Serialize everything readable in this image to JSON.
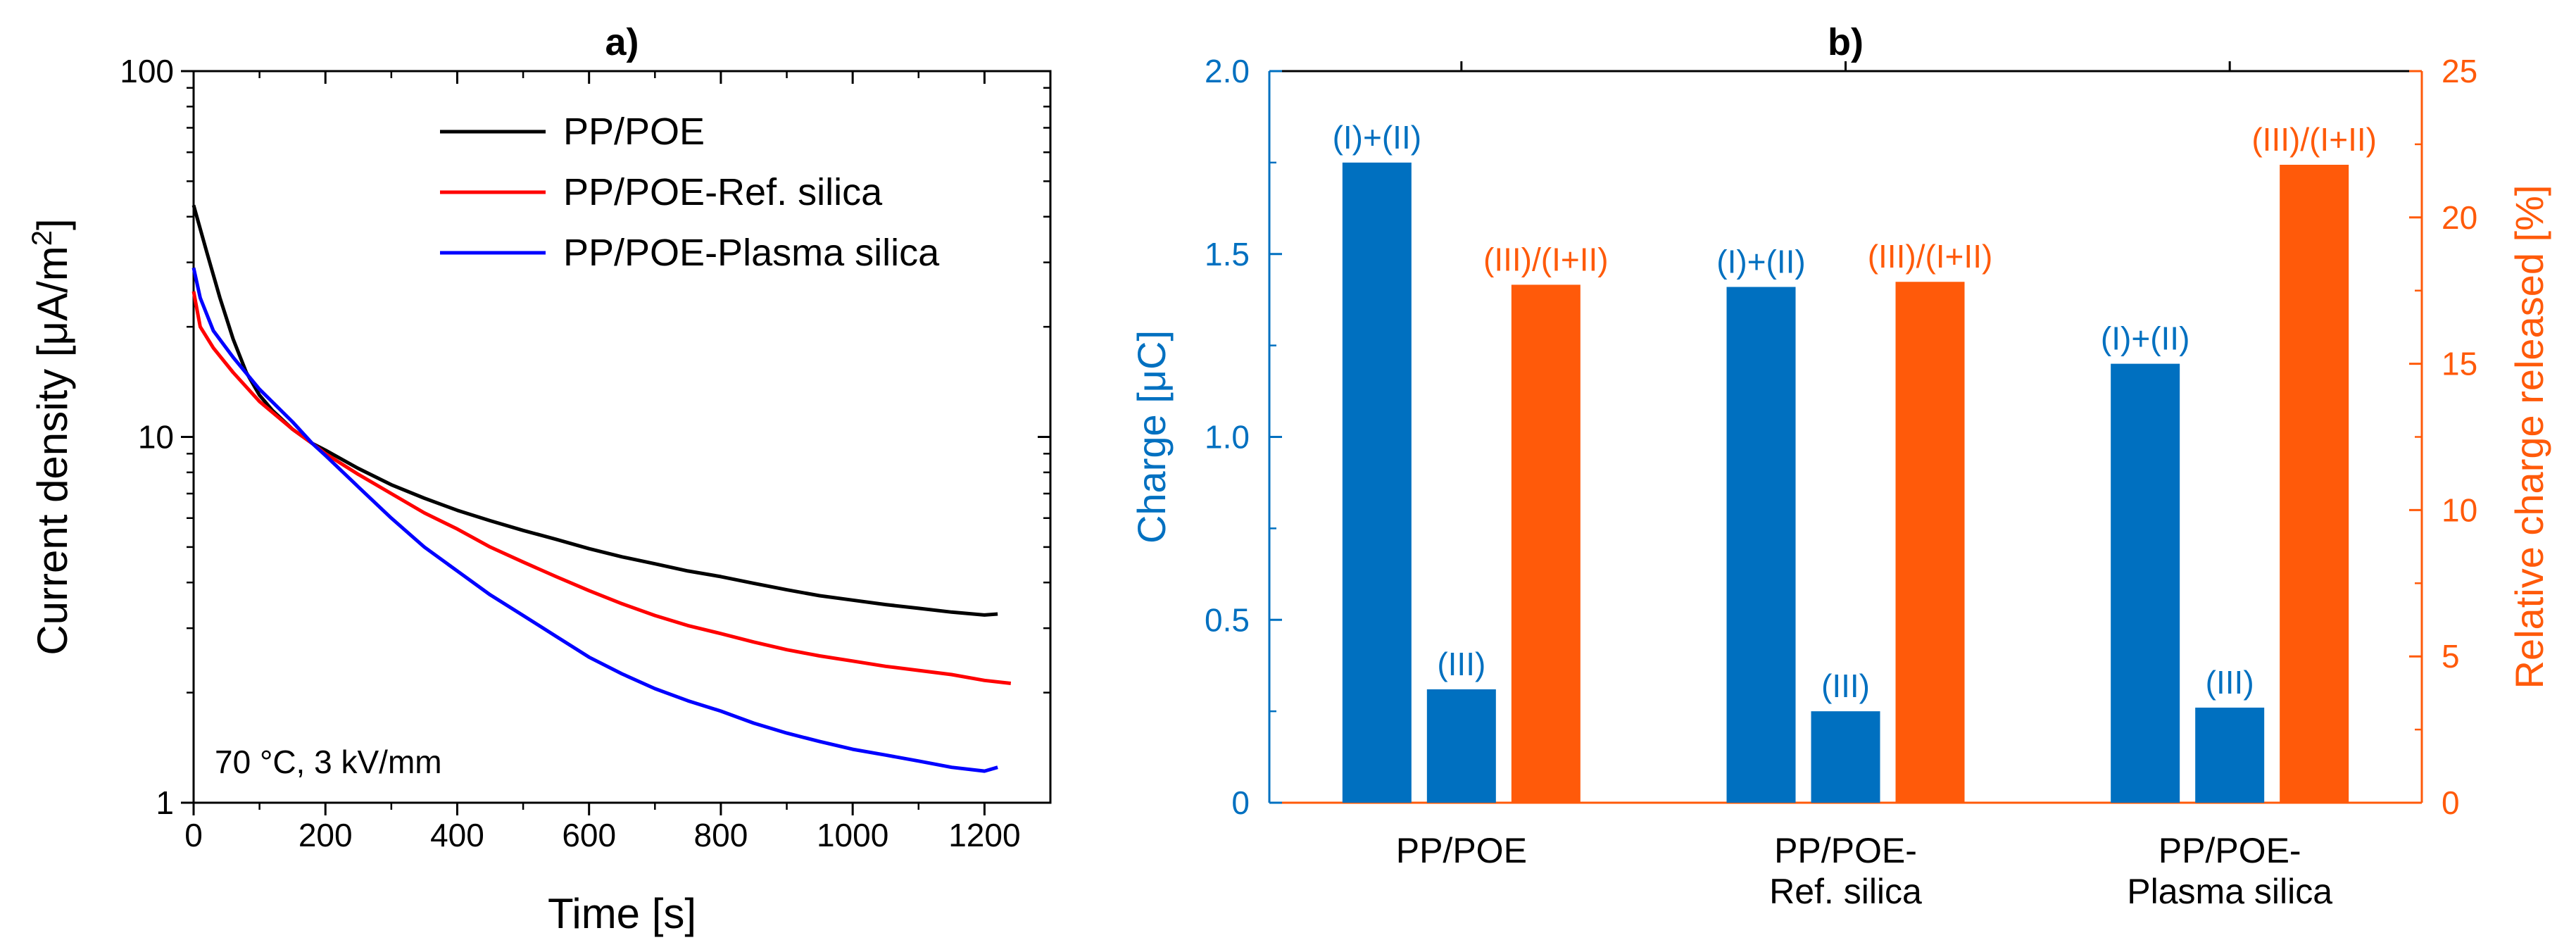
{
  "colors": {
    "black": "#000000",
    "red": "#ff0000",
    "blue": "#0000ff",
    "bar_blue": "#0070c0",
    "bar_orange": "#ff5a0a",
    "axis_blue": "#0070c0",
    "axis_orange": "#ff5a0a"
  },
  "chart_data": [
    {
      "type": "line",
      "title": "a)",
      "xlabel": "Time [s]",
      "ylabel_prefix": "Current density [μA/m",
      "ylabel_sup": "2",
      "ylabel_suffix": "]",
      "xscale": "linear",
      "yscale": "log",
      "xlim": [
        0,
        1300
      ],
      "ylim": [
        1,
        100
      ],
      "xticks": [
        0,
        200,
        400,
        600,
        800,
        1000,
        1200
      ],
      "xtick_labels": [
        "0",
        "200",
        "400",
        "600",
        "800",
        "1000",
        "1200"
      ],
      "yticks": [
        1,
        10,
        100
      ],
      "ytick_labels": [
        "1",
        "10",
        "100"
      ],
      "legend_position": "top-right",
      "annotation": "70 °C, 3 kV/mm",
      "series": [
        {
          "name": "PP/POE",
          "color": "#000000",
          "x": [
            0,
            20,
            40,
            60,
            80,
            100,
            120,
            150,
            180,
            200,
            250,
            300,
            350,
            400,
            450,
            500,
            550,
            600,
            650,
            700,
            750,
            800,
            850,
            900,
            950,
            1000,
            1050,
            1100,
            1150,
            1200,
            1220
          ],
          "y": [
            43,
            32,
            24,
            18.5,
            15,
            13,
            11.8,
            10.5,
            9.6,
            9.2,
            8.2,
            7.4,
            6.8,
            6.3,
            5.9,
            5.55,
            5.25,
            4.95,
            4.7,
            4.5,
            4.3,
            4.15,
            3.98,
            3.82,
            3.68,
            3.58,
            3.48,
            3.4,
            3.32,
            3.26,
            3.28
          ]
        },
        {
          "name": "PP/POE-Ref. silica",
          "color": "#ff0000",
          "x": [
            0,
            10,
            30,
            60,
            100,
            150,
            180,
            200,
            250,
            300,
            350,
            400,
            450,
            500,
            550,
            600,
            650,
            700,
            750,
            800,
            850,
            900,
            950,
            1000,
            1050,
            1100,
            1150,
            1200,
            1240
          ],
          "y": [
            25,
            20,
            17.5,
            15,
            12.5,
            10.5,
            9.6,
            9.0,
            7.9,
            7.0,
            6.2,
            5.6,
            5.0,
            4.55,
            4.15,
            3.8,
            3.5,
            3.25,
            3.05,
            2.9,
            2.75,
            2.62,
            2.52,
            2.44,
            2.36,
            2.3,
            2.24,
            2.16,
            2.12
          ]
        },
        {
          "name": "PP/POE-Plasma silica",
          "color": "#0000ff",
          "x": [
            0,
            10,
            30,
            60,
            100,
            150,
            180,
            200,
            250,
            300,
            350,
            400,
            450,
            500,
            550,
            600,
            650,
            700,
            750,
            800,
            850,
            900,
            950,
            1000,
            1050,
            1100,
            1150,
            1200,
            1220
          ],
          "y": [
            29,
            24,
            19.5,
            16.5,
            13.5,
            11,
            9.6,
            8.9,
            7.3,
            6.0,
            5.0,
            4.3,
            3.7,
            3.25,
            2.85,
            2.5,
            2.25,
            2.05,
            1.9,
            1.78,
            1.65,
            1.55,
            1.47,
            1.4,
            1.35,
            1.3,
            1.25,
            1.22,
            1.25
          ]
        }
      ]
    },
    {
      "type": "bar",
      "title": "b)",
      "categories": [
        "PP/POE",
        "PP/POE-Ref. silica",
        "PP/POE-Plasma silica"
      ],
      "category_label_lines": [
        [
          "PP/POE"
        ],
        [
          "PP/POE-",
          "Ref. silica"
        ],
        [
          "PP/POE-",
          "Plasma silica"
        ]
      ],
      "ylabel_left": "Charge [μC]",
      "ylabel_right": "Relative charge released [%]",
      "ylim_left": [
        0,
        2.0
      ],
      "ylim_right": [
        0,
        25
      ],
      "yticks_left": [
        0,
        0.5,
        1.0,
        1.5,
        2.0
      ],
      "ytick_labels_left": [
        "0",
        "0.5",
        "1.0",
        "1.5",
        "2.0"
      ],
      "yticks_right": [
        0,
        5,
        10,
        15,
        20,
        25
      ],
      "ytick_labels_right": [
        "0",
        "5",
        "10",
        "15",
        "20",
        "25"
      ],
      "series": [
        {
          "name": "(I)+(II)",
          "axis": "left",
          "color": "#0070c0",
          "values": [
            1.75,
            1.41,
            1.2
          ],
          "label": "(I)+(II)"
        },
        {
          "name": "(III)",
          "axis": "left",
          "color": "#0070c0",
          "values": [
            0.31,
            0.25,
            0.26
          ],
          "label": "(III)"
        },
        {
          "name": "(III)/(I+II)",
          "axis": "right",
          "color": "#ff5a0a",
          "values": [
            17.7,
            17.8,
            21.8
          ],
          "label": "(III)/(I+II)"
        }
      ]
    }
  ]
}
